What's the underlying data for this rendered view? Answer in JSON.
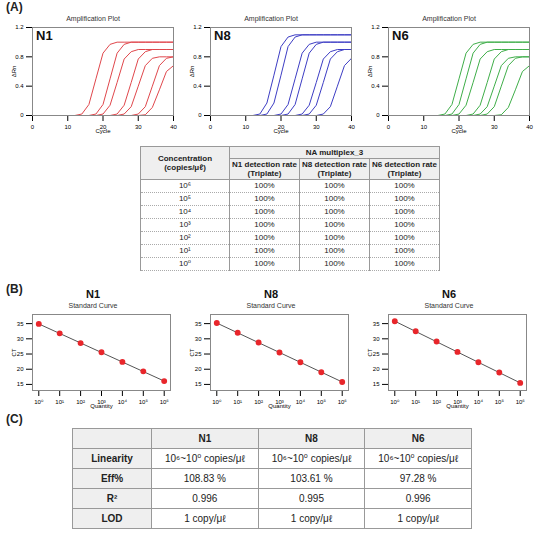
{
  "panel_labels": [
    "(A)",
    "(B)",
    "(C)"
  ],
  "chart_data": [
    {
      "type": "line",
      "title": "Amplification Plot",
      "heading": "N1",
      "x_label": "Cycle",
      "y_label": "ΔRn",
      "color": "#e0474c",
      "grid": false,
      "xlim": [
        0,
        40
      ],
      "xticks": [
        0,
        10,
        20,
        30,
        40
      ],
      "ylim": [
        0,
        1.2
      ],
      "yticks": [
        0,
        0.4,
        0.8,
        1.2
      ],
      "x": [
        0,
        2,
        4,
        6,
        8,
        10,
        12,
        14,
        16,
        18,
        20,
        22,
        24,
        26,
        28,
        30,
        32,
        34,
        36,
        38,
        40
      ],
      "series": [
        {
          "values": [
            0,
            0,
            0,
            0,
            0,
            0,
            0,
            0.02,
            0.15,
            0.5,
            0.85,
            0.97,
            1,
            1,
            1,
            1,
            1,
            1,
            1,
            1,
            1
          ]
        },
        {
          "values": [
            0,
            0,
            0,
            0,
            0,
            0,
            0,
            0,
            0,
            0.02,
            0.15,
            0.5,
            0.85,
            0.97,
            1,
            1,
            1,
            1,
            1,
            1,
            1
          ]
        },
        {
          "values": [
            0,
            0,
            0,
            0,
            0,
            0,
            0,
            0,
            0,
            0,
            0.02,
            0.14,
            0.45,
            0.77,
            0.87,
            0.9,
            0.9,
            0.9,
            0.9,
            0.9,
            0.9
          ]
        },
        {
          "values": [
            0,
            0,
            0,
            0,
            0,
            0,
            0,
            0,
            0,
            0,
            0,
            0,
            0.02,
            0.14,
            0.45,
            0.77,
            0.87,
            0.9,
            0.9,
            0.9,
            0.9
          ]
        },
        {
          "values": [
            0,
            0,
            0,
            0,
            0,
            0,
            0,
            0,
            0,
            0,
            0,
            0,
            0,
            0.02,
            0.12,
            0.4,
            0.68,
            0.78,
            0.8,
            0.8,
            0.8
          ]
        },
        {
          "values": [
            0,
            0,
            0,
            0,
            0,
            0,
            0,
            0,
            0,
            0,
            0,
            0,
            0,
            0,
            0,
            0.02,
            0.12,
            0.4,
            0.68,
            0.78,
            0.8
          ]
        },
        {
          "values": [
            0,
            0,
            0,
            0,
            0,
            0,
            0,
            0,
            0,
            0,
            0,
            0,
            0,
            0,
            0,
            0,
            0.01,
            0.11,
            0.35,
            0.6,
            0.68
          ]
        }
      ]
    },
    {
      "type": "line",
      "title": "Amplification Plot",
      "heading": "N8",
      "x_label": "Cycle",
      "y_label": "ΔRn",
      "color": "#3d3dc4",
      "grid": false,
      "xlim": [
        0,
        40
      ],
      "xticks": [
        0,
        10,
        20,
        30,
        40
      ],
      "ylim": [
        0,
        1.2
      ],
      "yticks": [
        0,
        0.4,
        0.8,
        1.2
      ],
      "x": [
        0,
        2,
        4,
        6,
        8,
        10,
        12,
        14,
        16,
        18,
        20,
        22,
        24,
        26,
        28,
        30,
        32,
        34,
        36,
        38,
        40
      ],
      "series": [
        {
          "values": [
            0,
            0,
            0,
            0,
            0,
            0,
            0,
            0.02,
            0.17,
            0.55,
            0.94,
            1.07,
            1.1,
            1.1,
            1.1,
            1.1,
            1.1,
            1.1,
            1.1,
            1.1,
            1.1
          ]
        },
        {
          "values": [
            0,
            0,
            0,
            0,
            0,
            0,
            0,
            0,
            0.02,
            0.17,
            0.55,
            0.94,
            1.07,
            1.1,
            1.1,
            1.1,
            1.1,
            1.1,
            1.1,
            1.1,
            1.1
          ]
        },
        {
          "values": [
            0,
            0,
            0,
            0,
            0,
            0,
            0,
            0,
            0,
            0,
            0.02,
            0.15,
            0.5,
            0.85,
            0.97,
            1,
            1,
            1,
            1,
            1,
            1
          ]
        },
        {
          "values": [
            0,
            0,
            0,
            0,
            0,
            0,
            0,
            0,
            0,
            0,
            0,
            0.02,
            0.15,
            0.5,
            0.85,
            0.97,
            1,
            1,
            1,
            1,
            1
          ]
        },
        {
          "values": [
            0,
            0,
            0,
            0,
            0,
            0,
            0,
            0,
            0,
            0,
            0,
            0,
            0,
            0.02,
            0.14,
            0.45,
            0.77,
            0.87,
            0.9,
            0.9,
            0.9
          ]
        },
        {
          "values": [
            0,
            0,
            0,
            0,
            0,
            0,
            0,
            0,
            0,
            0,
            0,
            0,
            0,
            0,
            0.02,
            0.14,
            0.45,
            0.77,
            0.87,
            0.9,
            0.9
          ]
        },
        {
          "values": [
            0,
            0,
            0,
            0,
            0,
            0,
            0,
            0,
            0,
            0,
            0,
            0,
            0,
            0,
            0,
            0,
            0.02,
            0.12,
            0.4,
            0.68,
            0.78
          ]
        }
      ]
    },
    {
      "type": "line",
      "title": "Amplification Plot",
      "heading": "N6",
      "x_label": "Cycle",
      "y_label": "ΔRn",
      "color": "#3fae49",
      "grid": false,
      "xlim": [
        0,
        40
      ],
      "xticks": [
        0,
        10,
        20,
        30,
        40
      ],
      "ylim": [
        0,
        1.2
      ],
      "yticks": [
        0,
        0.4,
        0.8,
        1.2
      ],
      "x": [
        0,
        2,
        4,
        6,
        8,
        10,
        12,
        14,
        16,
        18,
        20,
        22,
        24,
        26,
        28,
        30,
        32,
        34,
        36,
        38,
        40
      ],
      "series": [
        {
          "values": [
            0,
            0,
            0,
            0,
            0,
            0,
            0,
            0,
            0.02,
            0.15,
            0.5,
            0.85,
            0.97,
            1,
            1,
            1,
            1,
            1,
            1,
            1,
            1
          ]
        },
        {
          "values": [
            0,
            0,
            0,
            0,
            0,
            0,
            0,
            0,
            0,
            0.02,
            0.15,
            0.5,
            0.85,
            0.97,
            1,
            1,
            1,
            1,
            1,
            1,
            1
          ]
        },
        {
          "values": [
            0,
            0,
            0,
            0,
            0,
            0,
            0,
            0,
            0,
            0,
            0.02,
            0.14,
            0.45,
            0.77,
            0.87,
            0.9,
            0.9,
            0.9,
            0.9,
            0.9,
            0.9
          ]
        },
        {
          "values": [
            0,
            0,
            0,
            0,
            0,
            0,
            0,
            0,
            0,
            0,
            0,
            0,
            0.02,
            0.14,
            0.45,
            0.77,
            0.87,
            0.9,
            0.9,
            0.9,
            0.9
          ]
        },
        {
          "values": [
            0,
            0,
            0,
            0,
            0,
            0,
            0,
            0,
            0,
            0,
            0,
            0,
            0,
            0.02,
            0.12,
            0.4,
            0.68,
            0.78,
            0.8,
            0.8,
            0.8
          ]
        },
        {
          "values": [
            0,
            0,
            0,
            0,
            0,
            0,
            0,
            0,
            0,
            0,
            0,
            0,
            0,
            0,
            0.02,
            0.12,
            0.4,
            0.68,
            0.78,
            0.8,
            0.8
          ]
        },
        {
          "values": [
            0,
            0,
            0,
            0,
            0,
            0,
            0,
            0,
            0,
            0,
            0,
            0,
            0,
            0,
            0,
            0,
            0.01,
            0.11,
            0.35,
            0.6,
            0.68
          ]
        }
      ]
    },
    {
      "type": "scatter",
      "title": "Standard Curve",
      "heading": "N1",
      "x_label": "Quantity",
      "y_label": "CT",
      "log": "x",
      "grid": false,
      "xlim": [
        0.5,
        2000000
      ],
      "xticks": [
        {
          "value": 1,
          "label": "10⁰"
        },
        {
          "value": 10,
          "label": "10¹"
        },
        {
          "value": 100,
          "label": "10²"
        },
        {
          "value": 1000,
          "label": "10³"
        },
        {
          "value": 10000,
          "label": "10⁴"
        },
        {
          "value": 100000,
          "label": "10⁵"
        },
        {
          "value": 1000000,
          "label": "10⁶"
        }
      ],
      "ylim": [
        13,
        38
      ],
      "yticks": [
        15,
        20,
        25,
        30,
        35
      ],
      "series": [
        {
          "type": "line",
          "color": "#555555",
          "line_style": "solid",
          "x": [
            1,
            1000000
          ],
          "values": [
            34.9,
            16.1
          ]
        },
        {
          "type": "scatter",
          "color": "#e8262b",
          "marker": "circle",
          "x": [
            1000000,
            100000,
            10000,
            1000,
            100,
            10,
            1
          ],
          "values": [
            16.1,
            19.3,
            22.4,
            25.6,
            28.6,
            31.8,
            34.9
          ]
        }
      ]
    },
    {
      "type": "scatter",
      "title": "Standard Curve",
      "heading": "N8",
      "x_label": "Quantity",
      "y_label": "CT",
      "log": "x",
      "grid": false,
      "xlim": [
        0.5,
        2000000
      ],
      "xticks": [
        {
          "value": 1,
          "label": "10⁰"
        },
        {
          "value": 10,
          "label": "10¹"
        },
        {
          "value": 100,
          "label": "10²"
        },
        {
          "value": 1000,
          "label": "10³"
        },
        {
          "value": 10000,
          "label": "10⁴"
        },
        {
          "value": 100000,
          "label": "10⁵"
        },
        {
          "value": 1000000,
          "label": "10⁶"
        }
      ],
      "ylim": [
        13,
        38
      ],
      "yticks": [
        15,
        20,
        25,
        30,
        35
      ],
      "series": [
        {
          "type": "line",
          "color": "#555555",
          "line_style": "solid",
          "x": [
            1,
            1000000
          ],
          "values": [
            35.2,
            15.8
          ]
        },
        {
          "type": "scatter",
          "color": "#e8262b",
          "marker": "circle",
          "x": [
            1000000,
            100000,
            10000,
            1000,
            100,
            10,
            1
          ],
          "values": [
            15.8,
            19.0,
            22.3,
            25.5,
            28.8,
            32.0,
            35.2
          ]
        }
      ]
    },
    {
      "type": "scatter",
      "title": "Standard Curve",
      "heading": "N6",
      "x_label": "Quantity",
      "y_label": "CT",
      "log": "x",
      "grid": false,
      "xlim": [
        0.5,
        2000000
      ],
      "xticks": [
        {
          "value": 1,
          "label": "10⁰"
        },
        {
          "value": 10,
          "label": "10¹"
        },
        {
          "value": 100,
          "label": "10²"
        },
        {
          "value": 1000,
          "label": "10³"
        },
        {
          "value": 10000,
          "label": "10⁴"
        },
        {
          "value": 100000,
          "label": "10⁵"
        },
        {
          "value": 1000000,
          "label": "10⁶"
        }
      ],
      "ylim": [
        13,
        38
      ],
      "yticks": [
        15,
        20,
        25,
        30,
        35
      ],
      "series": [
        {
          "type": "line",
          "color": "#555555",
          "line_style": "solid",
          "x": [
            1,
            1000000
          ],
          "values": [
            35.8,
            15.5
          ]
        },
        {
          "type": "scatter",
          "color": "#e8262b",
          "marker": "circle",
          "x": [
            1000000,
            100000,
            10000,
            1000,
            100,
            10,
            1
          ],
          "values": [
            15.5,
            18.9,
            22.3,
            25.7,
            29.1,
            32.5,
            35.8
          ]
        }
      ]
    }
  ],
  "table_a": {
    "first_header": "Concentration (copies/μℓ)",
    "group_header": "NA multiplex_3",
    "columns": [
      "N1 detection rate (Triplate)",
      "N8 detection rate (Triplate)",
      "N6 detection rate (Triplate)"
    ],
    "rows": [
      [
        "10⁶",
        "100%",
        "100%",
        "100%"
      ],
      [
        "10⁵",
        "100%",
        "100%",
        "100%"
      ],
      [
        "10⁴",
        "100%",
        "100%",
        "100%"
      ],
      [
        "10³",
        "100%",
        "100%",
        "100%"
      ],
      [
        "10²",
        "100%",
        "100%",
        "100%"
      ],
      [
        "10¹",
        "100%",
        "100%",
        "100%"
      ],
      [
        "10⁰",
        "100%",
        "100%",
        "100%"
      ]
    ]
  },
  "table_c": {
    "columns": [
      "N1",
      "N8",
      "N6"
    ],
    "rows": [
      {
        "label": "Linearity",
        "cells": [
          "10⁶~10⁰ copies/μℓ",
          "10⁶~10⁰ copies/μℓ",
          "10⁶~10⁰ copies/μℓ"
        ]
      },
      {
        "label": "Eff%",
        "cells": [
          "108.83 %",
          "103.61 %",
          "97.28 %"
        ]
      },
      {
        "label": "R²",
        "cells": [
          "0.996",
          "0.995",
          "0.996"
        ]
      },
      {
        "label": "LOD",
        "cells": [
          "1 copy/μℓ",
          "1 copy/μℓ",
          "1 copy/μℓ"
        ]
      }
    ]
  }
}
